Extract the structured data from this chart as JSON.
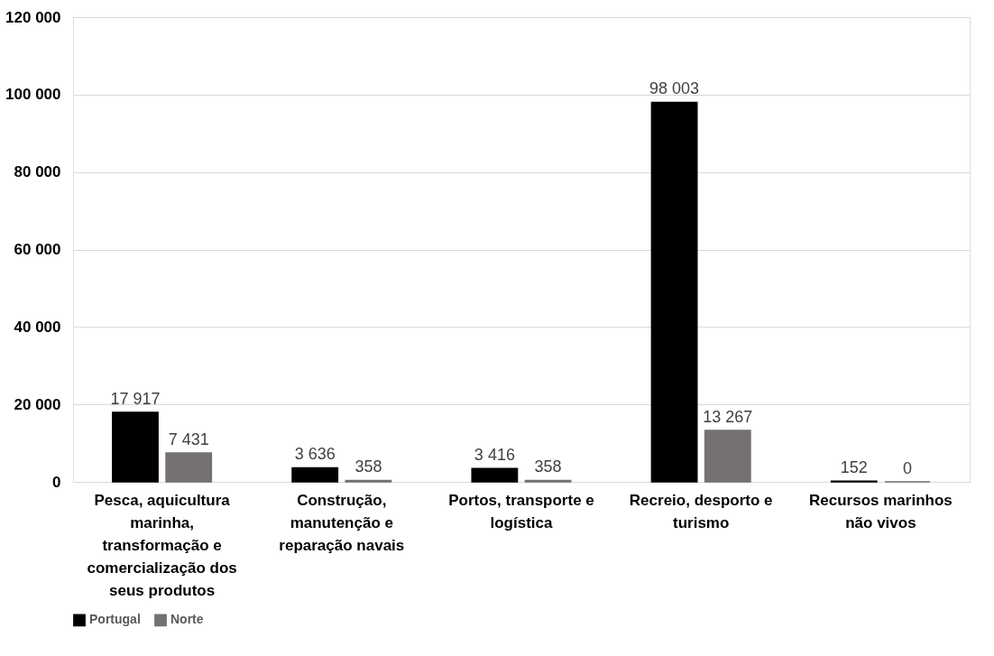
{
  "chart_data": {
    "type": "bar",
    "categories": [
      "Pesca, aquicultura marinha, transformação e comercialização dos seus produtos",
      "Construção, manutenção e reparação navais",
      "Portos, transporte e logística",
      "Recreio, desporto e turismo",
      "Recursos marinhos não vivos"
    ],
    "series": [
      {
        "name": "Portugal",
        "color": "#000000",
        "values": [
          17917,
          3636,
          3416,
          98003,
          152
        ],
        "value_labels": [
          "17 917",
          "3 636",
          "3 416",
          "98 003",
          "152"
        ]
      },
      {
        "name": "Norte",
        "color": "#767171",
        "values": [
          7431,
          358,
          358,
          13267,
          0
        ],
        "value_labels": [
          "7 431",
          "358",
          "358",
          "13 267",
          "0"
        ]
      }
    ],
    "ylim": [
      0,
      120000
    ],
    "yticks": [
      {
        "value": 0,
        "label": "0"
      },
      {
        "value": 20000,
        "label": "20 000"
      },
      {
        "value": 40000,
        "label": "40 000"
      },
      {
        "value": 60000,
        "label": "60 000"
      },
      {
        "value": 80000,
        "label": "80 000"
      },
      {
        "value": 100000,
        "label": "100 000"
      },
      {
        "value": 120000,
        "label": "120 000"
      }
    ],
    "grid": "y",
    "legend": "bottom"
  }
}
